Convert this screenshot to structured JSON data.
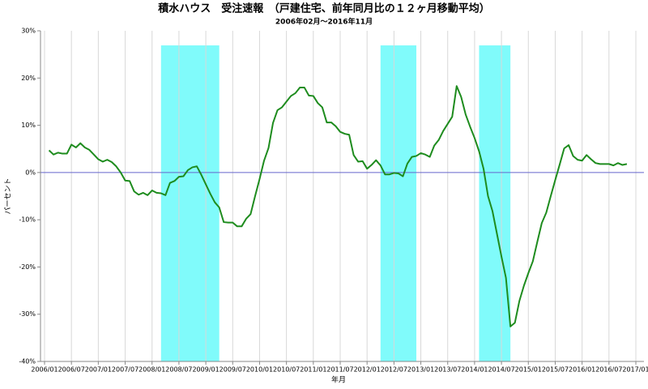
{
  "chart_data": {
    "type": "line",
    "title": "積水ハウス　受注速報　（戸建住宅、前年同月比の１２ヶ月移動平均）",
    "subtitle": "2006年02月～2016年11月",
    "x_label": "年月",
    "y_label": "パーセント",
    "categories": [
      "2006/02",
      "2006/03",
      "2006/04",
      "2006/05",
      "2006/06",
      "2006/07",
      "2006/08",
      "2006/09",
      "2006/10",
      "2006/11",
      "2006/12",
      "2007/01",
      "2007/02",
      "2007/03",
      "2007/04",
      "2007/05",
      "2007/06",
      "2007/07",
      "2007/08",
      "2007/09",
      "2007/10",
      "2007/11",
      "2007/12",
      "2008/01",
      "2008/02",
      "2008/03",
      "2008/04",
      "2008/05",
      "2008/06",
      "2008/07",
      "2008/08",
      "2008/09",
      "2008/10",
      "2008/11",
      "2008/12",
      "2009/01",
      "2009/02",
      "2009/03",
      "2009/04",
      "2009/05",
      "2009/06",
      "2009/07",
      "2009/08",
      "2009/09",
      "2009/10",
      "2009/11",
      "2009/12",
      "2010/01",
      "2010/02",
      "2010/03",
      "2010/04",
      "2010/05",
      "2010/06",
      "2010/07",
      "2010/08",
      "2010/09",
      "2010/10",
      "2010/11",
      "2010/12",
      "2011/01",
      "2011/02",
      "2011/03",
      "2011/04",
      "2011/05",
      "2011/06",
      "2011/07",
      "2011/08",
      "2011/09",
      "2011/10",
      "2011/11",
      "2011/12",
      "2012/01",
      "2012/02",
      "2012/03",
      "2012/04",
      "2012/05",
      "2012/06",
      "2012/07",
      "2012/08",
      "2012/09",
      "2012/10",
      "2012/11",
      "2012/12",
      "2013/01",
      "2013/02",
      "2013/03",
      "2013/04",
      "2013/05",
      "2013/06",
      "2013/07",
      "2013/08",
      "2013/09",
      "2013/10",
      "2013/11",
      "2013/12",
      "2014/01",
      "2014/02",
      "2014/03",
      "2014/04",
      "2014/05",
      "2014/06",
      "2014/07",
      "2014/08",
      "2014/09",
      "2014/10",
      "2014/11",
      "2014/12",
      "2015/01",
      "2015/02",
      "2015/03",
      "2015/04",
      "2015/05",
      "2015/06",
      "2015/07",
      "2015/08",
      "2015/09",
      "2015/10",
      "2015/11",
      "2015/12",
      "2016/01",
      "2016/02",
      "2016/03",
      "2016/04",
      "2016/05",
      "2016/06",
      "2016/07",
      "2016/08",
      "2016/09",
      "2016/10",
      "2016/11"
    ],
    "series": [
      {
        "color": "#1e8c1e",
        "values": [
          4.7,
          3.8,
          4.2,
          4.0,
          4.0,
          5.9,
          5.3,
          6.2,
          5.3,
          4.8,
          3.8,
          2.8,
          2.3,
          2.7,
          2.2,
          1.3,
          0,
          -1.7,
          -1.8,
          -4.0,
          -4.7,
          -4.3,
          -4.8,
          -3.8,
          -4.3,
          -4.4,
          -4.8,
          -2.2,
          -1.8,
          -0.9,
          -0.8,
          0.5,
          1.1,
          1.3,
          -0.5,
          -2.5,
          -4.5,
          -6.3,
          -7.4,
          -10.5,
          -10.6,
          -10.6,
          -11.4,
          -11.4,
          -9.8,
          -8.8,
          -5.0,
          -1.4,
          2.5,
          5.2,
          10.5,
          13.2,
          13.8,
          15.0,
          16.2,
          16.8,
          18.0,
          18.0,
          16.3,
          16.2,
          14.7,
          13.8,
          10.6,
          10.6,
          9.8,
          8.6,
          8.2,
          8.0,
          3.7,
          2.3,
          2.4,
          0.8,
          1.6,
          2.6,
          1.5,
          -0.4,
          -0.4,
          -0.1,
          -0.2,
          -0.8,
          1.9,
          3.3,
          3.5,
          4.1,
          3.8,
          3.3,
          5.7,
          6.9,
          8.8,
          10.3,
          11.8,
          18.3,
          16.0,
          12.3,
          9.7,
          7.3,
          4.5,
          0.8,
          -5.0,
          -8.2,
          -13.0,
          -17.8,
          -22.3,
          -32.6,
          -31.8,
          -27.2,
          -24.0,
          -21.3,
          -18.8,
          -14.7,
          -10.7,
          -8.5,
          -5.0,
          -1.6,
          1.7,
          5.1,
          5.8,
          3.5,
          2.7,
          2.5,
          3.7,
          2.8,
          2.0,
          1.8,
          1.8,
          1.8,
          1.5,
          2.0,
          1.6,
          1.8
        ]
      }
    ],
    "xlim": [
      "2006/01",
      "2017/01"
    ],
    "xticks": [
      "2006/01",
      "2006/07",
      "2007/01",
      "2007/07",
      "2008/01",
      "2008/07",
      "2009/01",
      "2009/07",
      "2010/01",
      "2010/07",
      "2011/01",
      "2011/07",
      "2012/01",
      "2012/07",
      "2013/01",
      "2013/07",
      "2014/01",
      "2014/07",
      "2015/01",
      "2015/07",
      "2016/01",
      "2016/07",
      "2017/01"
    ],
    "ylim": [
      -40,
      30
    ],
    "yticks": [
      {
        "value": -40,
        "label": "-40%"
      },
      {
        "value": -30,
        "label": "-30%"
      },
      {
        "value": -20,
        "label": "-20%"
      },
      {
        "value": -10,
        "label": "-10%"
      },
      {
        "value": 0,
        "label": "0%"
      },
      {
        "value": 10,
        "label": "10%"
      },
      {
        "value": 20,
        "label": "20%"
      },
      {
        "value": 30,
        "label": "30%"
      }
    ],
    "shaded_periods": [
      {
        "start": "2008/03",
        "end": "2009/04"
      },
      {
        "start": "2012/04",
        "end": "2012/12"
      },
      {
        "start": "2014/02",
        "end": "2014/09"
      }
    ],
    "shade_color": "#80fbfb",
    "zero_line_color": "#6666cc",
    "grid": true
  }
}
